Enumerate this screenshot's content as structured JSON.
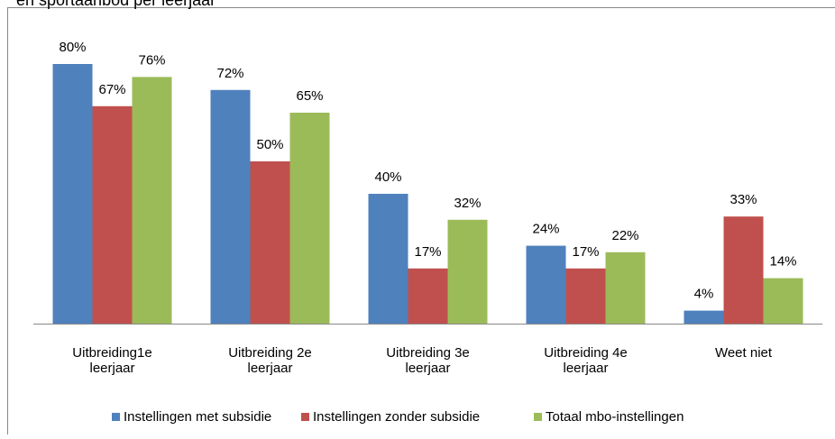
{
  "chart_data": {
    "type": "bar",
    "title": "en sportaanbod per leerjaar",
    "categories": [
      "Uitbreiding1e\nleerjaar",
      "Uitbreiding 2e\nleerjaar",
      "Uitbreiding 3e\nleerjaar",
      "Uitbreiding 4e\nleerjaar",
      "Weet niet"
    ],
    "series": [
      {
        "name": "Instellingen met subsidie",
        "color": "#4f81bd",
        "values": [
          80,
          72,
          40,
          24,
          4
        ],
        "value_labels": [
          "80%",
          "72%",
          "40%",
          "24%",
          "4%"
        ]
      },
      {
        "name": "Instellingen zonder subsidie",
        "color": "#c0504d",
        "values": [
          67,
          50,
          17,
          17,
          33
        ],
        "value_labels": [
          "67%",
          "50%",
          "17%",
          "17%",
          "33%"
        ]
      },
      {
        "name": "Totaal mbo-instellingen",
        "color": "#9bbb59",
        "values": [
          76,
          65,
          32,
          22,
          14
        ],
        "value_labels": [
          "76%",
          "65%",
          "32%",
          "22%",
          "14%"
        ]
      }
    ],
    "ylim": [
      0,
      80
    ],
    "legend": "bottom"
  }
}
